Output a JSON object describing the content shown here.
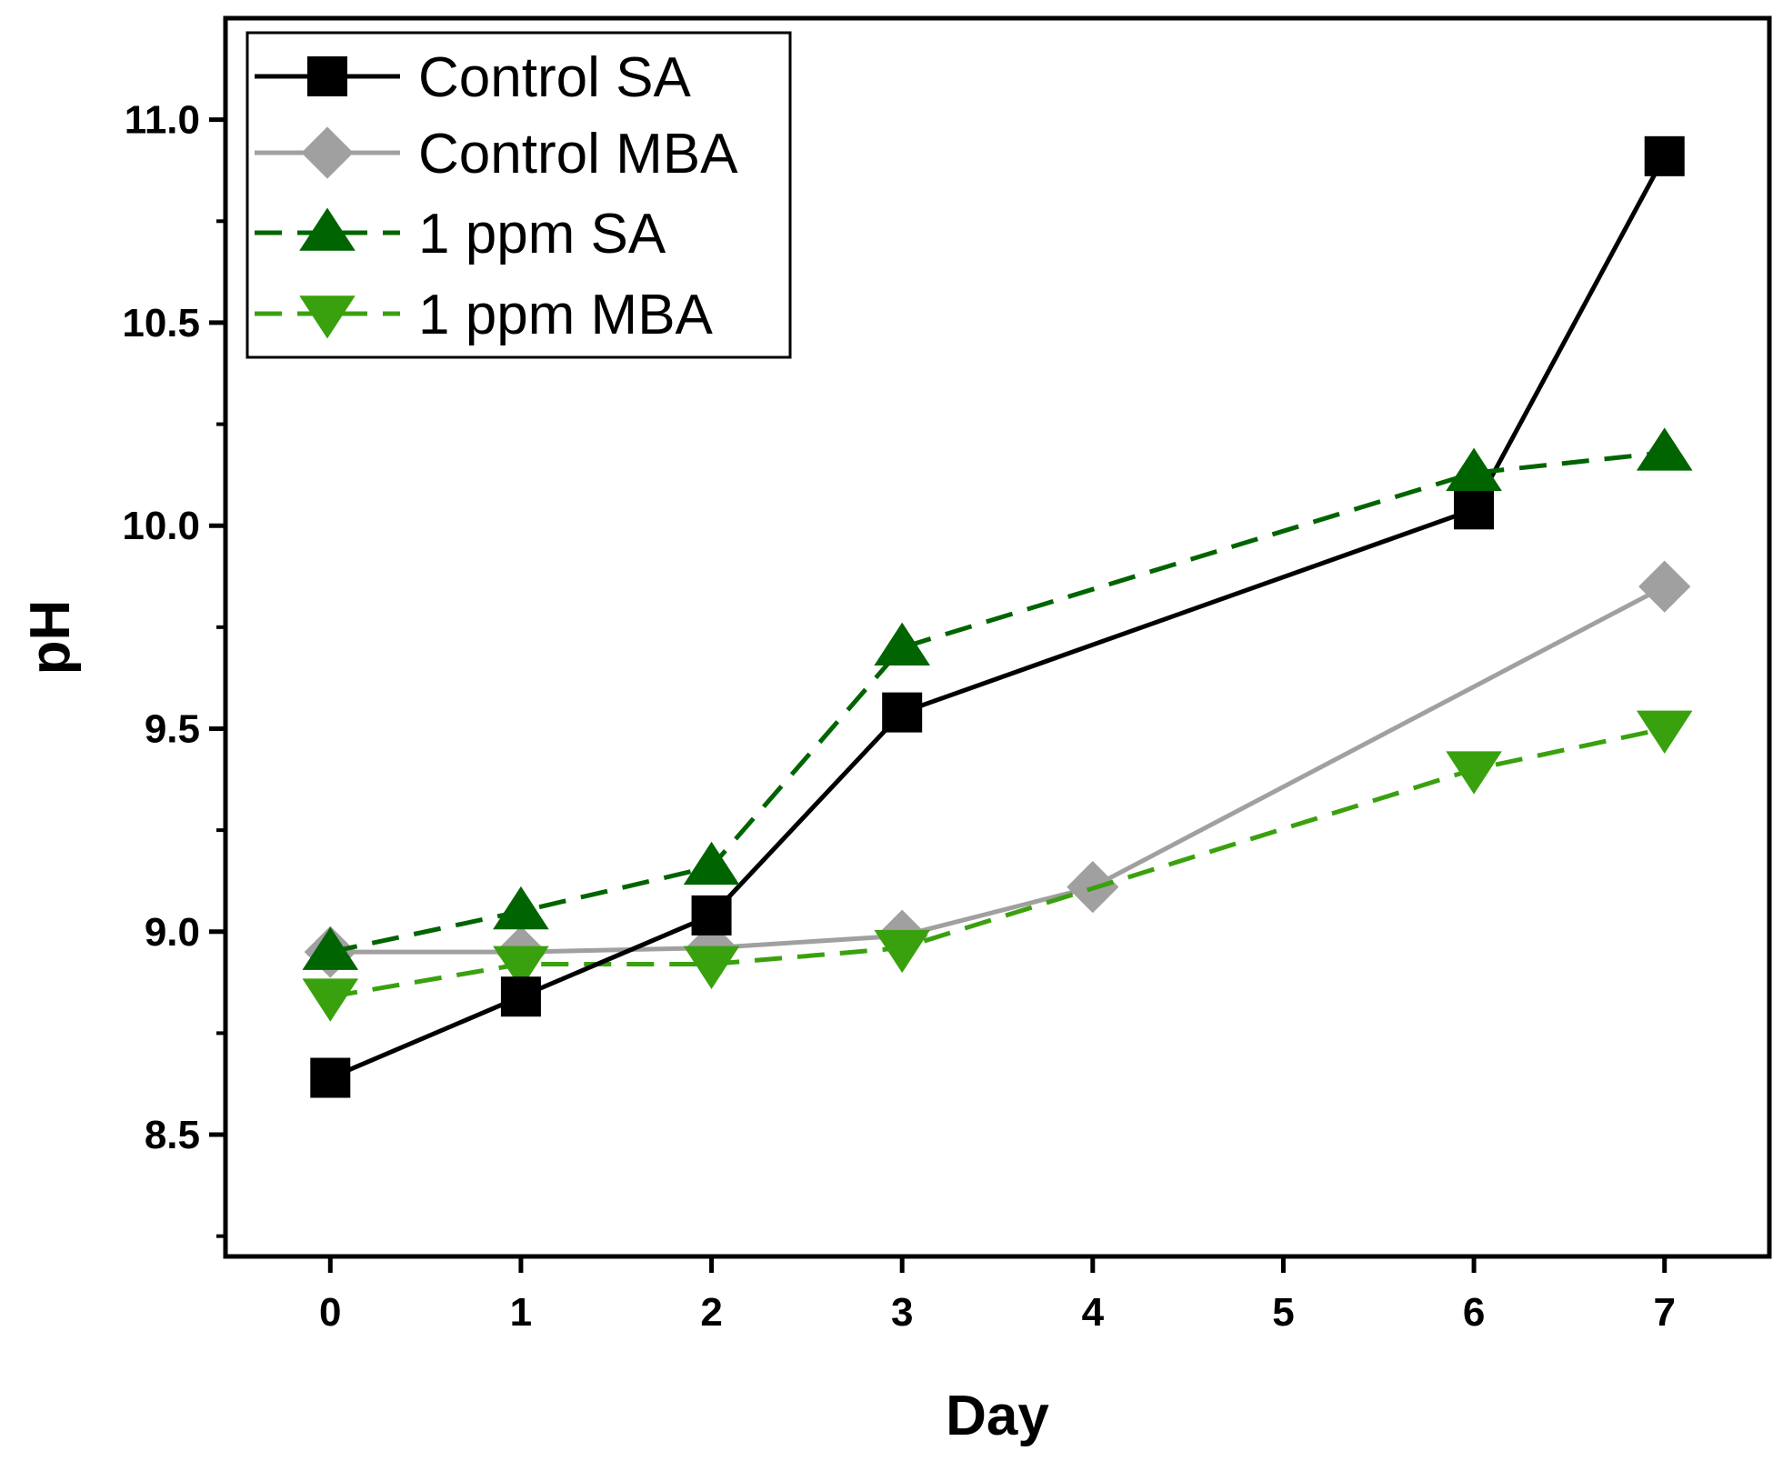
{
  "chart_data": {
    "type": "line",
    "title": "",
    "xlabel": "Day",
    "ylabel": "pH",
    "xlim": [
      -0.55,
      7.55
    ],
    "ylim": [
      8.2,
      11.25
    ],
    "xticks": [
      0,
      1,
      2,
      3,
      4,
      5,
      6,
      7
    ],
    "xtick_labels": [
      "0",
      "1",
      "2",
      "3",
      "4",
      "5",
      "6",
      "7"
    ],
    "yticks_major": [
      8.5,
      9.0,
      9.5,
      10.0,
      10.5,
      11.0
    ],
    "ytick_labels": [
      "8.5",
      "9.0",
      "9.5",
      "10.0",
      "10.5",
      "11.0"
    ],
    "yticks_minor": [
      8.25,
      8.75,
      9.25,
      9.75,
      10.25,
      10.75
    ],
    "grid": false,
    "legend_position": "top-left",
    "series": [
      {
        "name": "Control SA",
        "color": "#000000",
        "line": "solid",
        "marker": "square",
        "x": [
          0,
          1,
          2,
          3,
          6,
          7
        ],
        "y": [
          8.64,
          8.84,
          9.04,
          9.54,
          10.04,
          10.91
        ]
      },
      {
        "name": "Control MBA",
        "color": "#a0a0a0",
        "line": "solid",
        "marker": "diamond",
        "x": [
          0,
          1,
          2,
          3,
          4,
          7
        ],
        "y": [
          8.95,
          8.95,
          8.96,
          8.99,
          9.11,
          9.85
        ]
      },
      {
        "name": "1 ppm SA",
        "color": "#006400",
        "line": "dashed",
        "marker": "triangle-up",
        "x": [
          0,
          1,
          2,
          3,
          6,
          7
        ],
        "y": [
          8.95,
          9.05,
          9.16,
          9.7,
          10.13,
          10.18
        ]
      },
      {
        "name": "1 ppm MBA",
        "color": "#3aa10e",
        "line": "dashed",
        "marker": "triangle-down",
        "x": [
          0,
          1,
          2,
          3,
          6,
          7
        ],
        "y": [
          8.84,
          8.92,
          8.92,
          8.96,
          9.4,
          9.5
        ]
      }
    ]
  }
}
